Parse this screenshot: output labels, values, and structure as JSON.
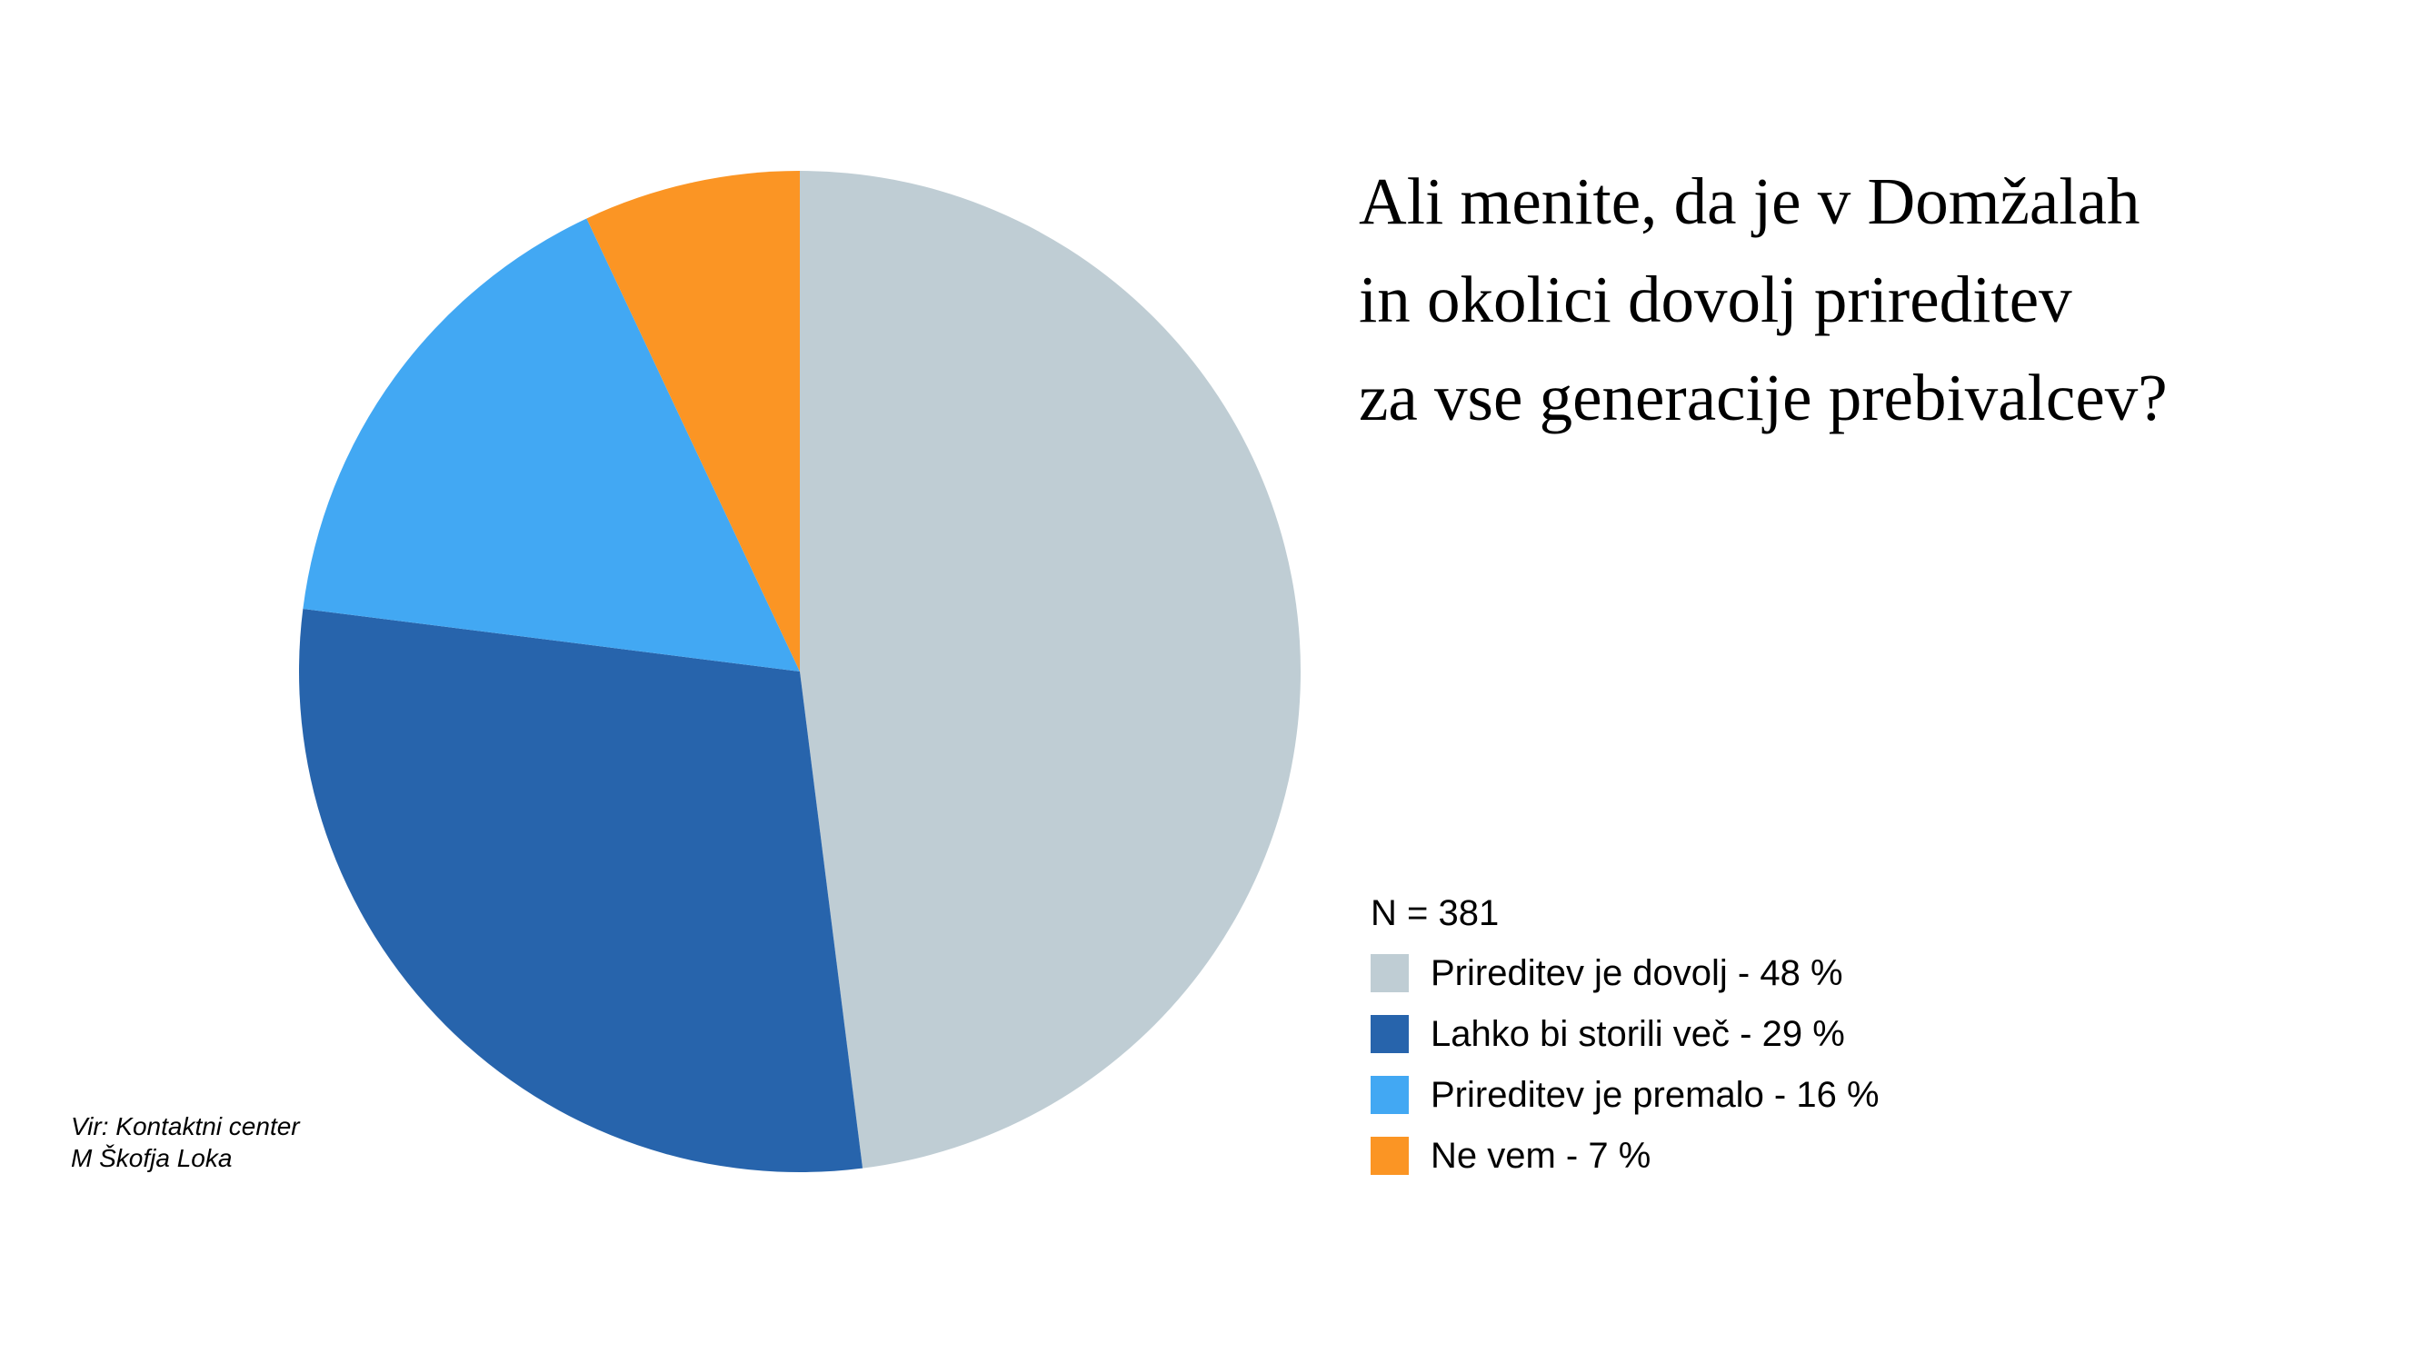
{
  "chart_data": {
    "type": "pie",
    "title_lines": [
      "Ali menite, da je v Domžalah",
      "in okolici dovolj prireditev",
      "za vse generacije prebivalcev?"
    ],
    "n_label": "N = 381",
    "slices": [
      {
        "label": "Prireditev je dovolj - 48 %",
        "value": 48,
        "color": "#bfcdd4"
      },
      {
        "label": "Lahko bi storili več - 29 %",
        "value": 29,
        "color": "#2764ac"
      },
      {
        "label": "Prireditev je premalo - 16 %",
        "value": 16,
        "color": "#42a8f3"
      },
      {
        "label": "Ne vem - 7 %",
        "value": 7,
        "color": "#fb9524"
      }
    ],
    "legend_position": "bottom-right"
  },
  "source": {
    "lines": [
      "Vir: Kontaktni center",
      "M Škofja Loka"
    ]
  }
}
